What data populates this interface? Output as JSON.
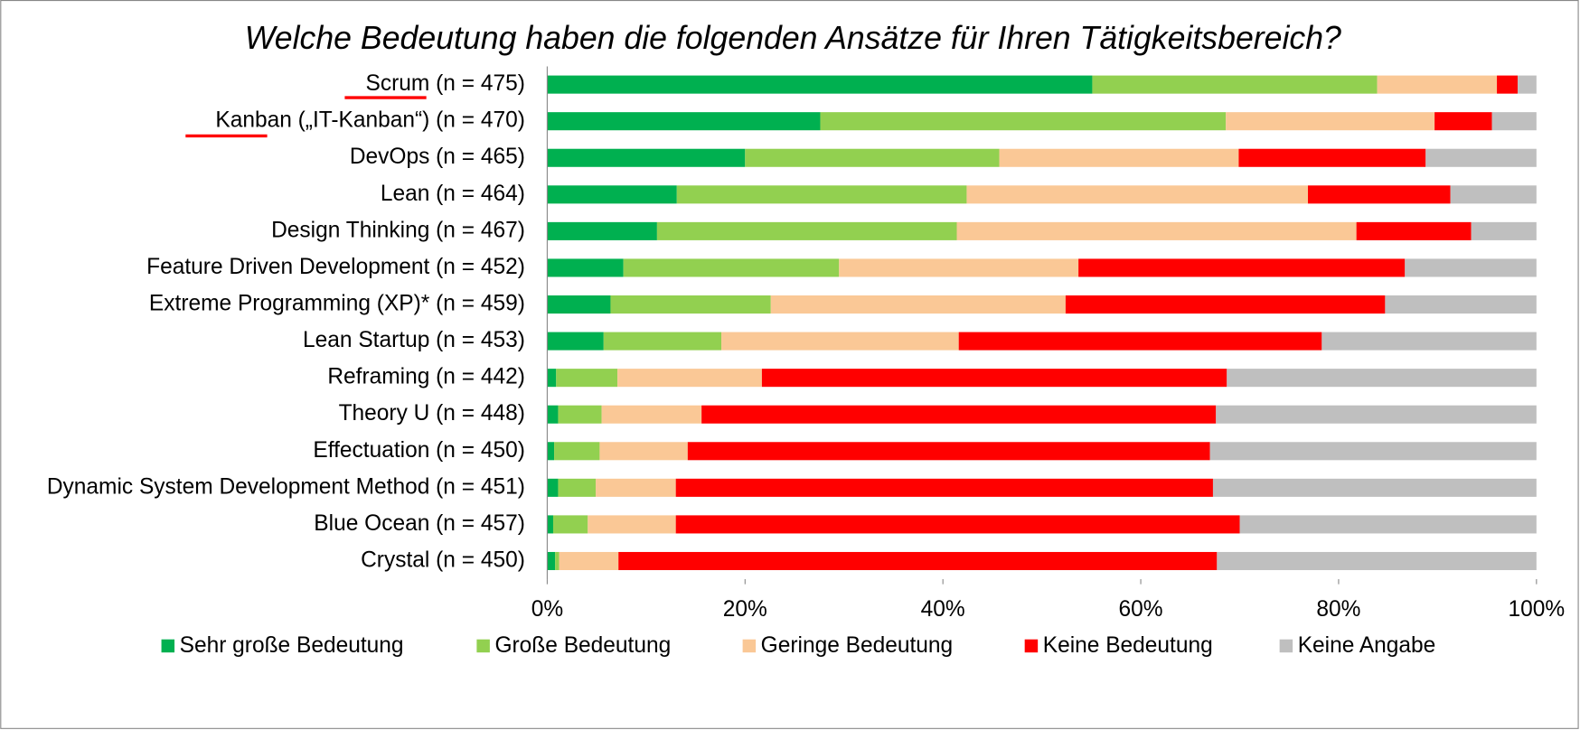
{
  "chart_data": {
    "type": "stacked_barh",
    "title": "Welche Bedeutung haben die folgenden Ansätze für Ihren Tätigkeitsbereich?",
    "categories": [
      "Scrum (n = 475)",
      "Kanban („IT-Kanban“) (n = 470)",
      "DevOps (n = 465)",
      "Lean (n = 464)",
      "Design Thinking (n = 467)",
      "Feature Driven Development (n = 452)",
      "Extreme Programming (XP)* (n = 459)",
      "Lean Startup (n = 453)",
      "Reframing (n = 442)",
      "Theory U (n = 448)",
      "Effectuation (n = 450)",
      "Dynamic System Development Method (n = 451)",
      "Blue Ocean (n = 457)",
      "Crystal (n = 450)"
    ],
    "series": [
      {
        "name": "Sehr große Bedeutung",
        "color": "#00b050",
        "values": [
          55.1,
          27.6,
          20.0,
          13.1,
          11.1,
          7.7,
          6.4,
          5.7,
          0.9,
          1.1,
          0.7,
          1.1,
          0.6,
          0.8
        ]
      },
      {
        "name": "Große Bedeutung",
        "color": "#92d050",
        "values": [
          28.8,
          41.0,
          25.7,
          29.3,
          30.3,
          21.8,
          16.2,
          11.9,
          6.2,
          4.4,
          4.6,
          3.8,
          3.5,
          0.4
        ]
      },
      {
        "name": "Geringe Bedeutung",
        "color": "#fac896",
        "values": [
          12.1,
          21.1,
          24.2,
          34.5,
          40.4,
          24.2,
          29.8,
          24.0,
          14.6,
          10.1,
          8.9,
          8.1,
          8.9,
          6.0
        ]
      },
      {
        "name": "Keine Bedeutung",
        "color": "#ff0000",
        "values": [
          2.1,
          5.8,
          18.9,
          14.4,
          11.6,
          33.0,
          32.3,
          36.7,
          47.0,
          52.0,
          52.8,
          54.3,
          57.0,
          60.5
        ]
      },
      {
        "name": "Keine Angabe",
        "color": "#bfbfbf",
        "values": [
          1.9,
          4.5,
          11.2,
          8.7,
          6.6,
          13.3,
          15.3,
          21.7,
          31.3,
          32.4,
          33.0,
          32.7,
          30.0,
          32.3
        ]
      }
    ],
    "xlim": [
      0,
      100
    ],
    "xticks": [
      {
        "value": 0,
        "label": "0%"
      },
      {
        "value": 20,
        "label": "20%"
      },
      {
        "value": 40,
        "label": "40%"
      },
      {
        "value": 60,
        "label": "60%"
      },
      {
        "value": 80,
        "label": "80%"
      },
      {
        "value": 100,
        "label": "100%"
      }
    ]
  }
}
